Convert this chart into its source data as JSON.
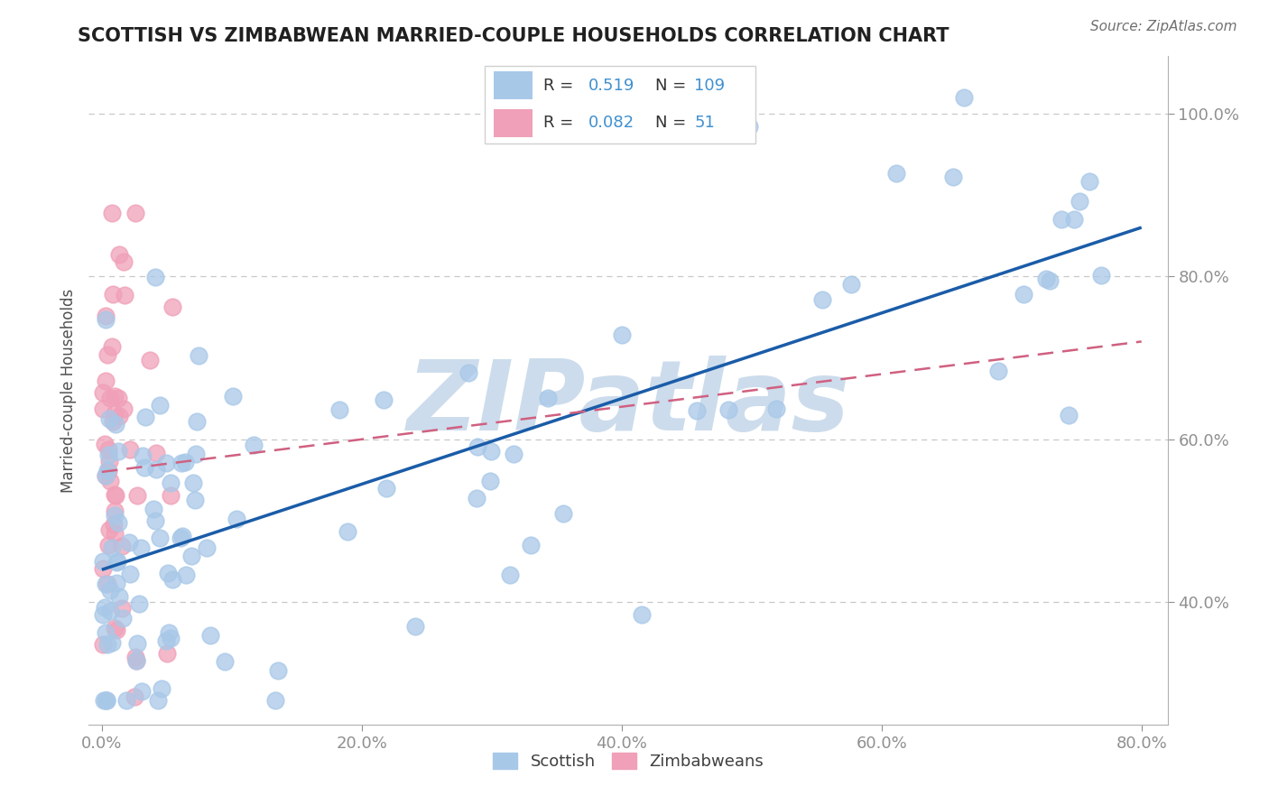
{
  "title": "SCOTTISH VS ZIMBABWEAN MARRIED-COUPLE HOUSEHOLDS CORRELATION CHART",
  "source": "Source: ZipAtlas.com",
  "ylabel": "Married-couple Households",
  "xlim": [
    -0.01,
    0.82
  ],
  "ylim": [
    0.25,
    1.07
  ],
  "xticks": [
    0.0,
    0.2,
    0.4,
    0.6,
    0.8
  ],
  "yticks": [
    0.4,
    0.6,
    0.8,
    1.0
  ],
  "ytick_labels": [
    "40.0%",
    "60.0%",
    "80.0%",
    "100.0%"
  ],
  "xtick_labels": [
    "0.0%",
    "20.0%",
    "40.0%",
    "60.0%",
    "80.0%"
  ],
  "scottish_color": "#a8c8e8",
  "zimbabwean_color": "#f0a0b8",
  "scottish_line_color": "#1a5ca8",
  "zimbabwean_line_color": "#d06080",
  "watermark_color": "#ccdcec",
  "axis_label_color": "#4090d0",
  "title_color": "#202020",
  "scottish_r": "0.519",
  "scottish_n": "109",
  "zimbabwean_r": "0.082",
  "zimbabwean_n": "51",
  "scottish_line": [
    0.0,
    0.8,
    0.44,
    0.86
  ],
  "zimbabwean_line": [
    0.0,
    0.8,
    0.56,
    0.72
  ]
}
